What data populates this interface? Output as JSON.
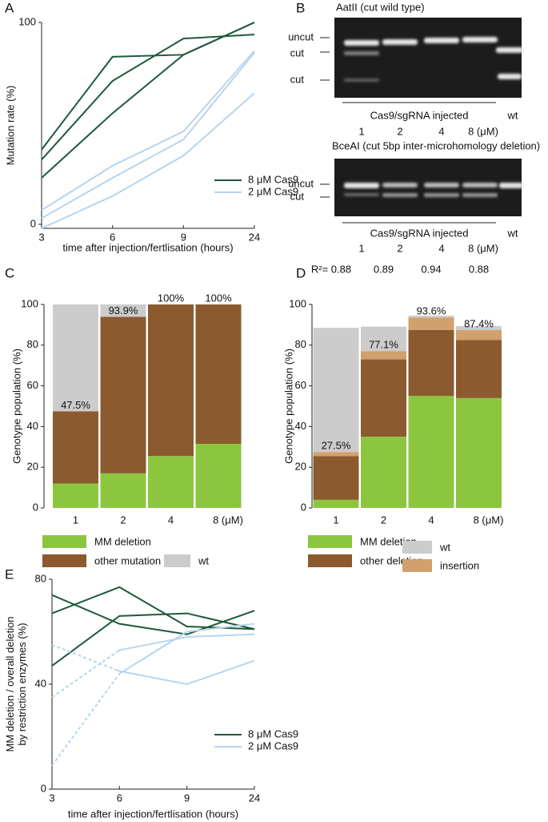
{
  "panel_labels": [
    "A",
    "B",
    "C",
    "D",
    "E"
  ],
  "gels": {
    "top": {
      "title": "AatII (cut wild type)",
      "band_labels": [
        "uncut",
        "cut",
        "cut"
      ],
      "injected": "Cas9/sgRNA injected",
      "lanes": [
        "1",
        "2",
        "4",
        "8 (μM)"
      ],
      "control": "wt"
    },
    "bottom": {
      "title": "BceAI (cut 5bp inter-microhomology deletion)",
      "band_labels": [
        "uncut",
        "cut"
      ],
      "injected": "Cas9/sgRNA injected",
      "lanes": [
        "1",
        "2",
        "4",
        "8 (μM)"
      ],
      "control": "wt"
    }
  },
  "chart_data": [
    {
      "type": "line",
      "x_label": "time after injection/fertlisation (hours)",
      "y_label": [
        "Mutation rate (%)"
      ],
      "categories": [
        "3",
        "6",
        "9",
        "24"
      ],
      "ylim": [
        -2,
        100
      ],
      "yticks": [
        0,
        100
      ],
      "series": [
        {
          "name": "8 μM Cas9",
          "color": "#1e5a3c",
          "values": [
            [
              37,
              83,
              84,
              100
            ],
            [
              32,
              71,
              92,
              94
            ],
            [
              23,
              55,
              84,
              100
            ]
          ]
        },
        {
          "name": "2 μM Cas9",
          "color": "#b8d4ee",
          "values": [
            [
              7,
              29,
              46,
              86
            ],
            [
              3,
              23,
              42,
              85
            ],
            [
              -2,
              14,
              34,
              65
            ]
          ]
        }
      ]
    },
    {
      "type": "stacked_bar",
      "y_label": [
        "Genotype population (%)"
      ],
      "categories": [
        "1",
        "2",
        "4",
        "8 (μM)"
      ],
      "ylim": [
        0,
        100
      ],
      "yticks": [
        0,
        20,
        40,
        60,
        80,
        100
      ],
      "series": [
        {
          "name": "MM deletion",
          "color": "#8cc63f",
          "values": [
            12,
            17,
            25.5,
            31.5
          ]
        },
        {
          "name": "other mutation",
          "color": "#8b5a2e",
          "values": [
            35.5,
            76.9,
            74.5,
            68.5
          ]
        },
        {
          "name": "wt",
          "color": "#cccccc",
          "values": [
            52.5,
            6.1,
            0,
            0
          ]
        }
      ],
      "total_labels": {
        "values": [
          47.5,
          93.9,
          100,
          100
        ],
        "value_labels": [
          "47.5%",
          "93.9%",
          "100%",
          "100%"
        ]
      }
    },
    {
      "type": "stacked_bar",
      "y_label": [
        "Genotype population (%)"
      ],
      "categories": [
        "1",
        "2",
        "4",
        "8 (μM)"
      ],
      "ylim": [
        0,
        100
      ],
      "yticks": [
        0,
        20,
        40,
        60,
        80,
        100
      ],
      "series": [
        {
          "name": "MM deletion",
          "color": "#8cc63f",
          "values": [
            4,
            35,
            55,
            54
          ]
        },
        {
          "name": "other deletion",
          "color": "#8b5a2e",
          "values": [
            21.5,
            38,
            32.5,
            28.5
          ]
        },
        {
          "name": "insertion",
          "color": "#d2a06d",
          "values": [
            2,
            4.1,
            6.1,
            4.9
          ]
        },
        {
          "name": "wt",
          "color": "#cccccc",
          "values": [
            61,
            12,
            0.9,
            2
          ]
        }
      ],
      "total_labels": {
        "values": [
          27.5,
          77.1,
          93.6,
          87.4
        ],
        "value_labels": [
          "27.5%",
          "77.1%",
          "93.6%",
          "87.4%"
        ]
      },
      "r_squared": {
        "values": [
          0.88,
          0.89,
          0.94,
          0.88
        ],
        "value_labels": [
          "R²= 0.88",
          "0.89",
          "0.94",
          "0.88"
        ]
      }
    },
    {
      "type": "line",
      "x_label": "time after injection/fertlisation (hours)",
      "y_label": [
        "MM deletion / overall deletion",
        "by restriction enzymes (%)"
      ],
      "categories": [
        "3",
        "6",
        "9",
        "24"
      ],
      "ylim": [
        0,
        80
      ],
      "yticks": [
        0,
        40,
        80
      ],
      "series": [
        {
          "name": "8 μM Cas9",
          "color": "#1e5a3c",
          "values": [
            [
              74,
              63,
              59,
              68
            ],
            [
              67,
              77,
              62,
              61
            ],
            [
              47,
              66,
              67,
              61
            ]
          ]
        },
        {
          "name": "2 μM Cas9",
          "color": "#b8d4ee",
          "dashed_first_segment": true,
          "values": [
            [
              55,
              45,
              40,
              49
            ],
            [
              35,
              53,
              58,
              59
            ],
            [
              9,
              44,
              60,
              63
            ]
          ]
        }
      ]
    }
  ]
}
